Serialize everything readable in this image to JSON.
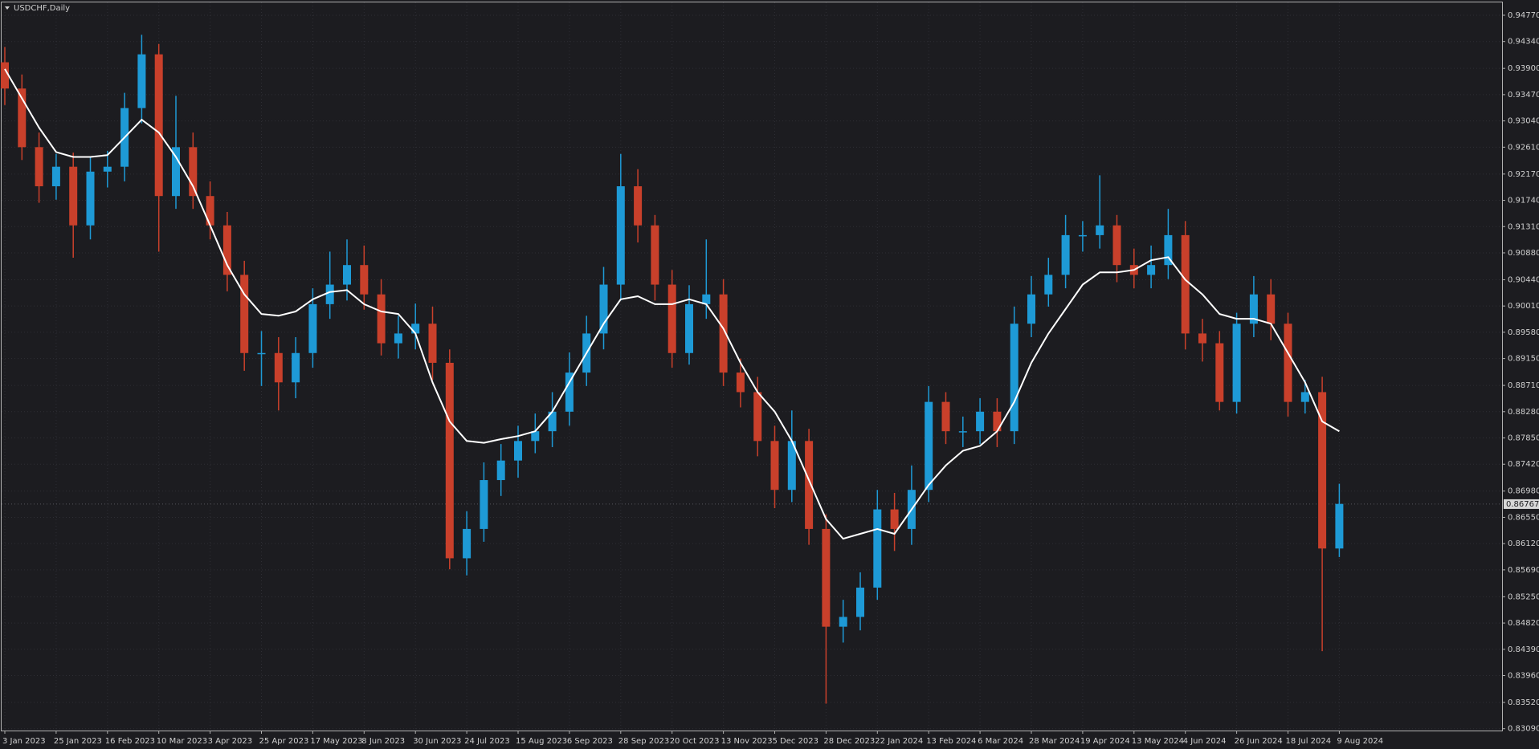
{
  "chart_data": {
    "type": "candlestick",
    "title": "USDCHF,Daily",
    "categories": [
      "3 Jan 2023",
      null,
      null,
      "25 Jan 2023",
      null,
      null,
      "16 Feb 2023",
      null,
      null,
      "10 Mar 2023",
      null,
      null,
      "3 Apr 2023",
      null,
      null,
      "25 Apr 2023",
      null,
      null,
      "17 May 2023",
      null,
      null,
      "8 Jun 2023",
      null,
      null,
      "30 Jun 2023",
      null,
      null,
      "24 Jul 2023",
      null,
      null,
      "15 Aug 2023",
      null,
      null,
      "6 Sep 2023",
      null,
      null,
      "28 Sep 2023",
      null,
      null,
      "20 Oct 2023",
      null,
      null,
      "13 Nov 2023",
      null,
      null,
      "5 Dec 2023",
      null,
      null,
      "28 Dec 2023",
      null,
      null,
      "22 Jan 2024",
      null,
      null,
      "13 Feb 2024",
      null,
      null,
      "6 Mar 2024",
      null,
      null,
      "28 Mar 2024",
      null,
      null,
      "19 Apr 2024",
      null,
      null,
      "13 May 2024",
      null,
      null,
      "4 Jun 2024",
      null,
      null,
      "26 Jun 2024",
      null,
      null,
      "18 Jul 2024",
      null,
      null,
      "9 Aug 2024"
    ],
    "open": [
      0.94,
      0.9357,
      0.9261,
      0.9197,
      0.9229,
      0.9133,
      0.9221,
      0.9229,
      0.9325,
      0.9413,
      0.9181,
      0.9261,
      0.9181,
      0.9133,
      0.9052,
      0.8924,
      0.8924,
      0.8876,
      0.8924,
      0.9004,
      0.9036,
      0.9068,
      0.902,
      0.894,
      0.8956,
      0.8972,
      0.8908,
      0.8588,
      0.8636,
      0.8716,
      0.8748,
      0.878,
      0.8796,
      0.8828,
      0.8892,
      0.8956,
      0.9036,
      0.9197,
      0.9133,
      0.9036,
      0.8924,
      0.9004,
      0.902,
      0.8892,
      0.886,
      0.878,
      0.87,
      0.878,
      0.8636,
      0.8476,
      0.8492,
      0.854,
      0.8668,
      0.8636,
      0.87,
      0.8844,
      0.8796,
      0.8796,
      0.8828,
      0.8796,
      0.8972,
      0.902,
      0.9052,
      0.9117,
      0.9117,
      0.9133,
      0.9068,
      0.9052,
      0.9068,
      0.9117,
      0.8956,
      0.894,
      0.8844,
      0.8972,
      0.902,
      0.8972,
      0.8844,
      0.886,
      0.8604
    ],
    "high": [
      0.9425,
      0.938,
      0.9285,
      0.925,
      0.9252,
      0.9245,
      0.9255,
      0.935,
      0.9445,
      0.943,
      0.9345,
      0.9285,
      0.9205,
      0.9155,
      0.9075,
      0.896,
      0.895,
      0.895,
      0.903,
      0.909,
      0.911,
      0.91,
      0.9045,
      0.8985,
      0.9005,
      0.9,
      0.893,
      0.8665,
      0.8745,
      0.8775,
      0.8805,
      0.8825,
      0.886,
      0.8925,
      0.8985,
      0.9065,
      0.925,
      0.9225,
      0.915,
      0.906,
      0.9035,
      0.911,
      0.9045,
      0.8915,
      0.8885,
      0.8805,
      0.883,
      0.88,
      0.866,
      0.852,
      0.8565,
      0.87,
      0.8695,
      0.874,
      0.887,
      0.886,
      0.882,
      0.885,
      0.885,
      0.9,
      0.905,
      0.908,
      0.915,
      0.914,
      0.9215,
      0.915,
      0.9095,
      0.91,
      0.916,
      0.914,
      0.898,
      0.896,
      0.899,
      0.905,
      0.9045,
      0.899,
      0.888,
      0.8885,
      0.871
    ],
    "low": [
      0.933,
      0.924,
      0.917,
      0.9175,
      0.908,
      0.911,
      0.9195,
      0.9205,
      0.93,
      0.909,
      0.916,
      0.916,
      0.911,
      0.9025,
      0.8895,
      0.887,
      0.883,
      0.885,
      0.89,
      0.898,
      0.901,
      0.8995,
      0.892,
      0.8915,
      0.893,
      0.888,
      0.857,
      0.856,
      0.8615,
      0.869,
      0.872,
      0.876,
      0.877,
      0.8805,
      0.887,
      0.893,
      0.901,
      0.9105,
      0.901,
      0.89,
      0.8905,
      0.898,
      0.887,
      0.8835,
      0.8755,
      0.867,
      0.868,
      0.861,
      0.835,
      0.845,
      0.847,
      0.852,
      0.86,
      0.861,
      0.868,
      0.8775,
      0.877,
      0.8775,
      0.877,
      0.8775,
      0.895,
      0.9,
      0.903,
      0.909,
      0.9095,
      0.904,
      0.903,
      0.903,
      0.9045,
      0.893,
      0.891,
      0.883,
      0.8825,
      0.895,
      0.8945,
      0.882,
      0.8825,
      0.8436,
      0.859
    ],
    "close": [
      0.9357,
      0.9261,
      0.9197,
      0.9229,
      0.9133,
      0.9221,
      0.9229,
      0.9325,
      0.9413,
      0.9181,
      0.9261,
      0.9181,
      0.9133,
      0.9052,
      0.8924,
      0.8924,
      0.8876,
      0.8924,
      0.9004,
      0.9036,
      0.9068,
      0.902,
      0.894,
      0.8956,
      0.8972,
      0.8908,
      0.8588,
      0.8636,
      0.8716,
      0.8748,
      0.878,
      0.8796,
      0.8828,
      0.8892,
      0.8956,
      0.9036,
      0.9197,
      0.9133,
      0.9036,
      0.8924,
      0.9004,
      0.902,
      0.8892,
      0.886,
      0.878,
      0.87,
      0.878,
      0.8636,
      0.8476,
      0.8492,
      0.854,
      0.8668,
      0.8636,
      0.87,
      0.8844,
      0.8796,
      0.8796,
      0.8828,
      0.8796,
      0.8972,
      0.902,
      0.9052,
      0.9117,
      0.9117,
      0.9133,
      0.9068,
      0.9052,
      0.9068,
      0.9117,
      0.8956,
      0.894,
      0.8844,
      0.8972,
      0.902,
      0.8972,
      0.8844,
      0.886,
      0.8604,
      0.8677
    ],
    "up_color": "#1e9ad6",
    "down_color": "#c9402b",
    "series": [
      {
        "color": "#ffffff",
        "values": [
          0.9389,
          0.9341,
          0.9293,
          0.9253,
          0.9245,
          0.9245,
          0.9248,
          0.9277,
          0.9306,
          0.9285,
          0.9245,
          0.9197,
          0.9133,
          0.9068,
          0.902,
          0.8988,
          0.8985,
          0.8992,
          0.9012,
          0.9024,
          0.9027,
          0.9004,
          0.8992,
          0.8988,
          0.8956,
          0.8876,
          0.8812,
          0.878,
          0.8777,
          0.8783,
          0.8788,
          0.8796,
          0.8828,
          0.8876,
          0.8924,
          0.8972,
          0.9012,
          0.9017,
          0.9004,
          0.9004,
          0.9012,
          0.9004,
          0.8964,
          0.8908,
          0.886,
          0.8828,
          0.878,
          0.8716,
          0.8652,
          0.862,
          0.8628,
          0.8636,
          0.8628,
          0.8668,
          0.8708,
          0.874,
          0.8764,
          0.8772,
          0.8796,
          0.8844,
          0.8908,
          0.8956,
          0.8996,
          0.9036,
          0.9056,
          0.9056,
          0.906,
          0.9076,
          0.9081,
          0.9044,
          0.902,
          0.8988,
          0.898,
          0.898,
          0.8972,
          0.8924,
          0.8876,
          0.8812,
          0.8796
        ]
      }
    ],
    "ylim": [
      0.8306,
      0.9498
    ],
    "yticks": [
      {
        "value": 0.9477,
        "label": "0.94770"
      },
      {
        "value": 0.9434,
        "label": "0.94340"
      },
      {
        "value": 0.939,
        "label": "0.93900"
      },
      {
        "value": 0.9347,
        "label": "0.93470"
      },
      {
        "value": 0.9304,
        "label": "0.93040"
      },
      {
        "value": 0.9261,
        "label": "0.92610"
      },
      {
        "value": 0.9217,
        "label": "0.92170"
      },
      {
        "value": 0.9174,
        "label": "0.91740"
      },
      {
        "value": 0.9131,
        "label": "0.91310"
      },
      {
        "value": 0.9088,
        "label": "0.90880"
      },
      {
        "value": 0.9044,
        "label": "0.90440"
      },
      {
        "value": 0.9001,
        "label": "0.90010"
      },
      {
        "value": 0.8958,
        "label": "0.89580"
      },
      {
        "value": 0.8915,
        "label": "0.89150"
      },
      {
        "value": 0.8871,
        "label": "0.88710"
      },
      {
        "value": 0.8828,
        "label": "0.88280"
      },
      {
        "value": 0.8785,
        "label": "0.87850"
      },
      {
        "value": 0.8742,
        "label": "0.87420"
      },
      {
        "value": 0.8698,
        "label": "0.86980"
      },
      {
        "value": 0.8655,
        "label": "0.86550"
      },
      {
        "value": 0.8612,
        "label": "0.86120"
      },
      {
        "value": 0.8569,
        "label": "0.85690"
      },
      {
        "value": 0.8525,
        "label": "0.85250"
      },
      {
        "value": 0.8482,
        "label": "0.84820"
      },
      {
        "value": 0.8439,
        "label": "0.84390"
      },
      {
        "value": 0.8396,
        "label": "0.83960"
      },
      {
        "value": 0.8352,
        "label": "0.83520"
      },
      {
        "value": 0.8309,
        "label": "0.83090"
      }
    ],
    "last_price": {
      "value": 0.86767,
      "label": "0.86767"
    },
    "grid": true
  }
}
